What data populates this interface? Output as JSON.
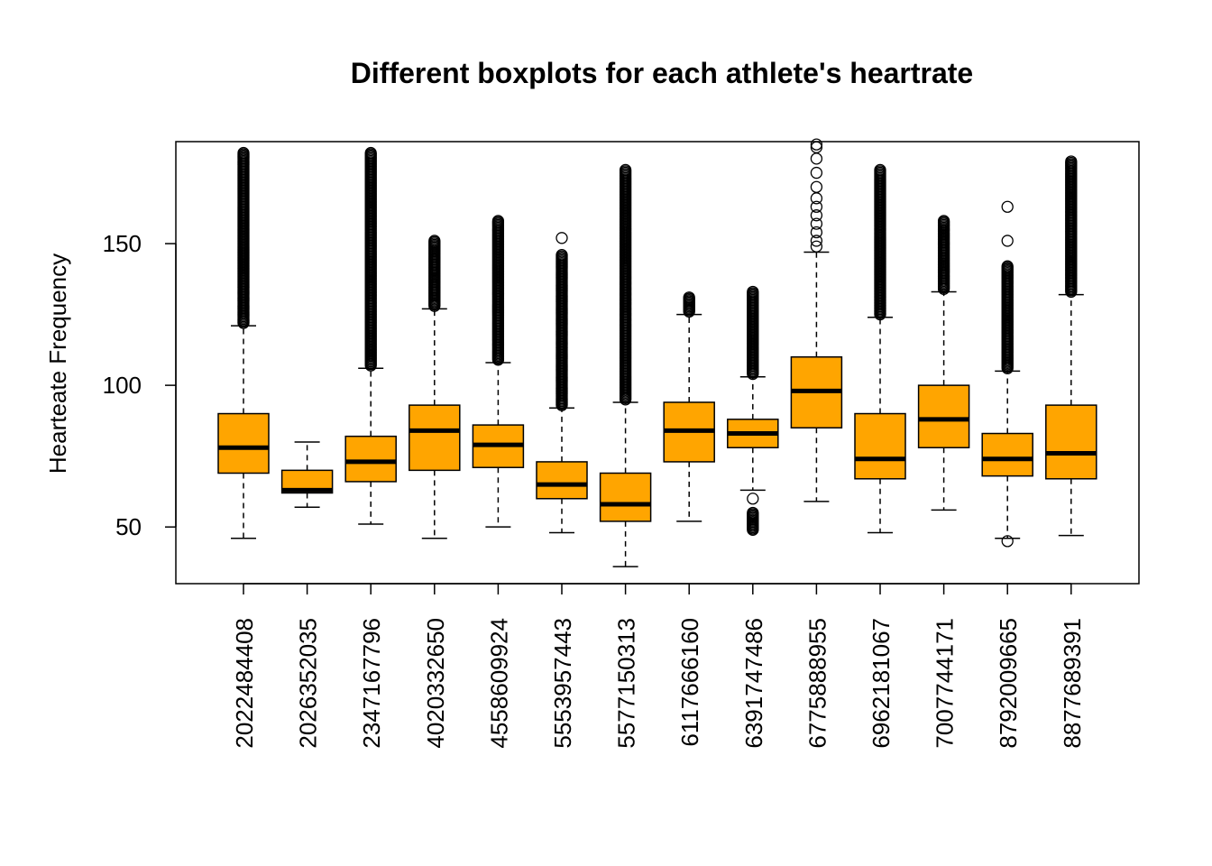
{
  "chart_data": {
    "type": "boxplot",
    "title": "Different boxplots for each athlete's heartrate",
    "xlabel": "",
    "ylabel": "Hearteate Frequency",
    "ylim": [
      30,
      186
    ],
    "yticks": [
      50,
      100,
      150
    ],
    "grid": false,
    "box_color": "#FFA500",
    "stroke_color": "#000000",
    "categories": [
      "2022484408",
      "2026352035",
      "2347167796",
      "4020332650",
      "4558609924",
      "5553957443",
      "5577150313",
      "6117666160",
      "6391747486",
      "6775888955",
      "6962181067",
      "7007744171",
      "8792009665",
      "8877689391"
    ],
    "boxes": [
      {
        "q1": 69,
        "median": 78,
        "q3": 90,
        "whisker_low": 46,
        "whisker_high": 121,
        "outlier_low_range": null,
        "outlier_high_range": [
          122,
          182
        ],
        "outliers": []
      },
      {
        "q1": 62,
        "median": 63,
        "q3": 70,
        "whisker_low": 57,
        "whisker_high": 80,
        "outlier_low_range": null,
        "outlier_high_range": null,
        "outliers": []
      },
      {
        "q1": 66,
        "median": 73,
        "q3": 82,
        "whisker_low": 51,
        "whisker_high": 106,
        "outlier_low_range": null,
        "outlier_high_range": [
          107,
          182
        ],
        "outliers": []
      },
      {
        "q1": 70,
        "median": 84,
        "q3": 93,
        "whisker_low": 46,
        "whisker_high": 127,
        "outlier_low_range": null,
        "outlier_high_range": [
          128,
          151
        ],
        "outliers": []
      },
      {
        "q1": 71,
        "median": 79,
        "q3": 86,
        "whisker_low": 50,
        "whisker_high": 108,
        "outlier_low_range": null,
        "outlier_high_range": [
          109,
          158
        ],
        "outliers": []
      },
      {
        "q1": 60,
        "median": 65,
        "q3": 73,
        "whisker_low": 48,
        "whisker_high": 92,
        "outlier_low_range": null,
        "outlier_high_range": [
          93,
          146
        ],
        "outliers": [
          152
        ]
      },
      {
        "q1": 52,
        "median": 58,
        "q3": 69,
        "whisker_low": 36,
        "whisker_high": 94,
        "outlier_low_range": null,
        "outlier_high_range": [
          95,
          176
        ],
        "outliers": []
      },
      {
        "q1": 73,
        "median": 84,
        "q3": 94,
        "whisker_low": 52,
        "whisker_high": 125,
        "outlier_low_range": null,
        "outlier_high_range": [
          126,
          131
        ],
        "outliers": []
      },
      {
        "q1": 78,
        "median": 83,
        "q3": 88,
        "whisker_low": 63,
        "whisker_high": 103,
        "outlier_low_range": [
          49,
          55
        ],
        "outlier_high_range": [
          104,
          133
        ],
        "outliers": [
          60
        ]
      },
      {
        "q1": 85,
        "median": 98,
        "q3": 110,
        "whisker_low": 59,
        "whisker_high": 147,
        "outlier_low_range": null,
        "outlier_high_range": null,
        "outliers": [
          149,
          151,
          154,
          157,
          160,
          163,
          166,
          170,
          175,
          180,
          184,
          185
        ]
      },
      {
        "q1": 67,
        "median": 74,
        "q3": 90,
        "whisker_low": 48,
        "whisker_high": 124,
        "outlier_low_range": null,
        "outlier_high_range": [
          125,
          176
        ],
        "outliers": []
      },
      {
        "q1": 78,
        "median": 88,
        "q3": 100,
        "whisker_low": 56,
        "whisker_high": 133,
        "outlier_low_range": null,
        "outlier_high_range": [
          134,
          158
        ],
        "outliers": []
      },
      {
        "q1": 68,
        "median": 74,
        "q3": 83,
        "whisker_low": 46,
        "whisker_high": 105,
        "outlier_low_range": null,
        "outlier_high_range": [
          106,
          142
        ],
        "outliers": [
          45,
          151,
          163
        ]
      },
      {
        "q1": 67,
        "median": 76,
        "q3": 93,
        "whisker_low": 47,
        "whisker_high": 132,
        "outlier_low_range": null,
        "outlier_high_range": [
          133,
          179
        ],
        "outliers": []
      }
    ]
  }
}
